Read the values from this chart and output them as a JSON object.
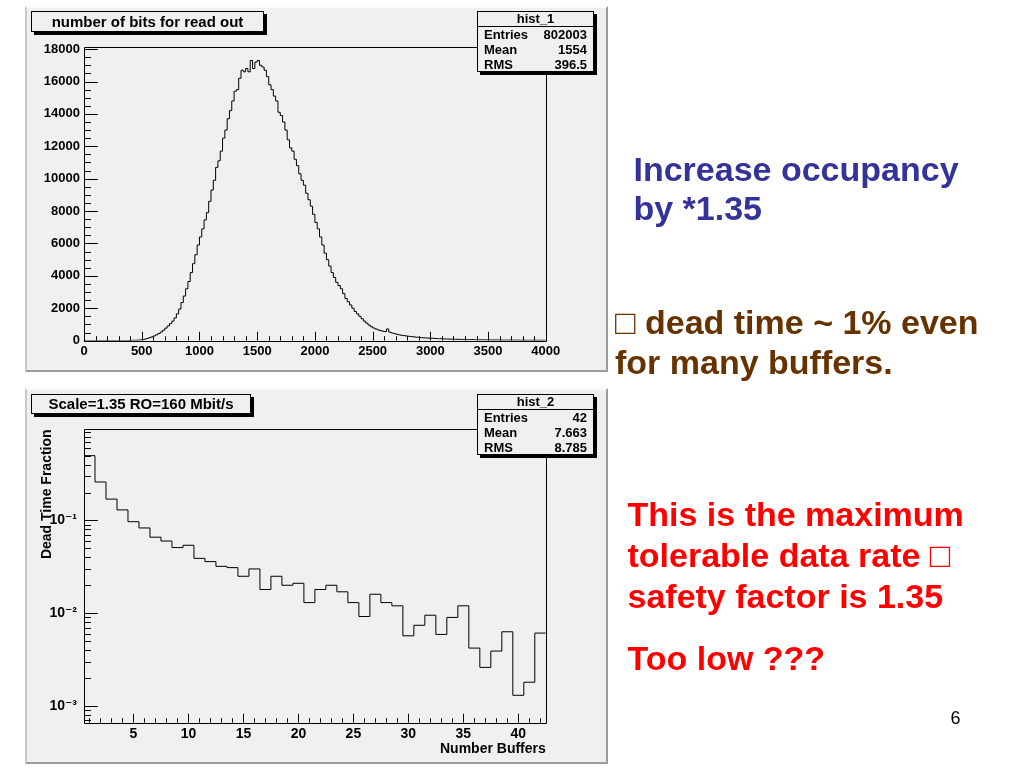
{
  "chart_data": [
    {
      "type": "histogram",
      "title": "number of bits for read out",
      "color": "#000000",
      "bins": [
        0,
        20,
        40,
        60,
        80,
        100,
        120,
        140,
        160,
        180,
        200,
        220,
        240,
        260,
        280,
        300,
        320,
        340,
        360,
        380,
        400,
        420,
        440,
        460,
        480,
        500,
        520,
        540,
        560,
        580,
        600,
        620,
        640,
        660,
        680,
        700,
        720,
        740,
        760,
        780,
        800,
        820,
        840,
        860,
        880,
        900,
        920,
        940,
        960,
        980,
        1000,
        1020,
        1040,
        1060,
        1080,
        1100,
        1120,
        1140,
        1160,
        1180,
        1200,
        1220,
        1240,
        1260,
        1280,
        1300,
        1320,
        1340,
        1360,
        1380,
        1400,
        1420,
        1440,
        1460,
        1480,
        1500,
        1520,
        1540,
        1560,
        1580,
        1600,
        1620,
        1640,
        1660,
        1680,
        1700,
        1720,
        1740,
        1760,
        1780,
        1800,
        1820,
        1840,
        1860,
        1880,
        1900,
        1920,
        1940,
        1960,
        1980,
        2000,
        2020,
        2040,
        2060,
        2080,
        2100,
        2120,
        2140,
        2160,
        2180,
        2200,
        2220,
        2240,
        2260,
        2280,
        2300,
        2320,
        2340,
        2360,
        2380,
        2400,
        2420,
        2440,
        2460,
        2480,
        2500,
        2520,
        2540,
        2560,
        2580,
        2600,
        2620,
        2640,
        2660,
        2680,
        2700,
        2720,
        2740,
        2760,
        2780,
        2800,
        2820,
        2840,
        2860,
        2880,
        2900,
        2920,
        2940,
        2960,
        2980,
        3000,
        3020,
        3040,
        3060,
        3080,
        3100,
        3120,
        3140,
        3160,
        3180,
        3200,
        3220,
        3240,
        3260,
        3280,
        3300,
        3320,
        3340,
        3360,
        3380,
        3400,
        3420,
        3440,
        3460,
        3480,
        3500,
        3520,
        3540,
        3560,
        3580,
        3600,
        3620,
        3640,
        3660,
        3680,
        3700,
        3720,
        3740,
        3760,
        3780,
        3800,
        3820,
        3840,
        3860,
        3880,
        3900,
        3920,
        3940,
        3960,
        3980,
        4000
      ],
      "values": [
        0,
        0,
        0,
        0,
        0,
        0,
        0,
        0,
        0,
        0,
        0,
        0,
        0,
        0,
        0,
        0,
        0,
        0,
        0,
        0,
        10,
        20,
        20,
        30,
        40,
        60,
        90,
        130,
        180,
        230,
        290,
        360,
        440,
        530,
        640,
        770,
        900,
        1050,
        1200,
        1400,
        1650,
        1950,
        2350,
        2750,
        3200,
        3650,
        4200,
        4750,
        5300,
        5900,
        6400,
        6900,
        7450,
        7900,
        8600,
        9300,
        9900,
        10700,
        11100,
        11700,
        12500,
        13000,
        13700,
        14200,
        14800,
        15400,
        15500,
        16200,
        16700,
        16600,
        16800,
        16600,
        17300,
        16800,
        17200,
        17300,
        17000,
        16900,
        16700,
        16300,
        15800,
        15500,
        15100,
        14800,
        14100,
        13900,
        13500,
        13000,
        12400,
        11900,
        11700,
        11200,
        10800,
        10300,
        9900,
        9600,
        9100,
        8700,
        8300,
        7800,
        7300,
        6900,
        6400,
        5900,
        5400,
        5000,
        4600,
        4200,
        3900,
        3600,
        3400,
        3200,
        2900,
        2600,
        2400,
        2200,
        2000,
        1800,
        1650,
        1500,
        1350,
        1200,
        1080,
        960,
        860,
        780,
        720,
        660,
        620,
        580,
        560,
        720,
        520,
        470,
        430,
        390,
        360,
        330,
        310,
        290,
        270,
        250,
        240,
        220,
        210,
        190,
        180,
        170,
        160,
        150,
        150,
        140,
        130,
        120,
        120,
        110,
        100,
        100,
        90,
        90,
        80,
        80,
        80,
        70,
        70,
        60,
        60,
        60,
        60,
        50,
        50,
        50,
        50,
        50,
        40,
        40,
        40,
        40,
        40,
        40,
        30,
        30,
        30,
        30,
        30,
        30,
        30,
        30,
        30,
        20,
        20,
        20,
        20,
        20,
        20,
        20,
        20,
        20,
        20,
        20
      ],
      "xlim": [
        0,
        4000
      ],
      "ylim": [
        0,
        18150
      ],
      "xticks": [
        0,
        {
          "value": 100,
          "label": null
        },
        {
          "value": 200,
          "label": null
        },
        {
          "value": 300,
          "label": null
        },
        {
          "value": 400,
          "label": null
        },
        500,
        {
          "value": 600,
          "label": null
        },
        {
          "value": 700,
          "label": null
        },
        {
          "value": 800,
          "label": null
        },
        {
          "value": 900,
          "label": null
        },
        1000,
        {
          "value": 1100,
          "label": null
        },
        {
          "value": 1200,
          "label": null
        },
        {
          "value": 1300,
          "label": null
        },
        {
          "value": 1400,
          "label": null
        },
        1500,
        {
          "value": 1600,
          "label": null
        },
        {
          "value": 1700,
          "label": null
        },
        {
          "value": 1800,
          "label": null
        },
        {
          "value": 1900,
          "label": null
        },
        2000,
        {
          "value": 2100,
          "label": null
        },
        {
          "value": 2200,
          "label": null
        },
        {
          "value": 2300,
          "label": null
        },
        {
          "value": 2400,
          "label": null
        },
        2500,
        {
          "value": 2600,
          "label": null
        },
        {
          "value": 2700,
          "label": null
        },
        {
          "value": 2800,
          "label": null
        },
        {
          "value": 2900,
          "label": null
        },
        3000,
        {
          "value": 3100,
          "label": null
        },
        {
          "value": 3200,
          "label": null
        },
        {
          "value": 3300,
          "label": null
        },
        {
          "value": 3400,
          "label": null
        },
        3500,
        {
          "value": 3600,
          "label": null
        },
        {
          "value": 3700,
          "label": null
        },
        {
          "value": 3800,
          "label": null
        },
        {
          "value": 3900,
          "label": null
        },
        4000
      ],
      "yticks": [
        0,
        {
          "value": 500,
          "label": null
        },
        {
          "value": 1000,
          "label": null
        },
        {
          "value": 1500,
          "label": null
        },
        2000,
        {
          "value": 2500,
          "label": null
        },
        {
          "value": 3000,
          "label": null
        },
        {
          "value": 3500,
          "label": null
        },
        4000,
        {
          "value": 4500,
          "label": null
        },
        {
          "value": 5000,
          "label": null
        },
        {
          "value": 5500,
          "label": null
        },
        6000,
        {
          "value": 6500,
          "label": null
        },
        {
          "value": 7000,
          "label": null
        },
        {
          "value": 7500,
          "label": null
        },
        8000,
        {
          "value": 8500,
          "label": null
        },
        {
          "value": 9000,
          "label": null
        },
        {
          "value": 9500,
          "label": null
        },
        10000,
        {
          "value": 10500,
          "label": null
        },
        {
          "value": 11000,
          "label": null
        },
        {
          "value": 11500,
          "label": null
        },
        12000,
        {
          "value": 12500,
          "label": null
        },
        {
          "value": 13000,
          "label": null
        },
        {
          "value": 13500,
          "label": null
        },
        14000,
        {
          "value": 14500,
          "label": null
        },
        {
          "value": 15000,
          "label": null
        },
        {
          "value": 15500,
          "label": null
        },
        16000,
        {
          "value": 16500,
          "label": null
        },
        {
          "value": 17000,
          "label": null
        },
        {
          "value": 17500,
          "label": null
        },
        18000
      ],
      "annotations": [
        "hist_1",
        "Entries",
        "802003",
        "Mean",
        "1554",
        "RMS",
        "396.5",
        "Increase occupancy by *1.35",
        "□ dead time ~ 1% even for many buffers."
      ]
    },
    {
      "type": "histogram",
      "title": "Scale=1.35 RO=160 Mbit/s",
      "xlabel": "Number Buffers",
      "ylabel": "Dead Time Fraction",
      "color": "#000000",
      "log": "y",
      "bins": [
        0.5,
        1.5,
        2.5,
        3.5,
        4.5,
        5.5,
        6.5,
        7.5,
        8.5,
        9.5,
        10.5,
        11.5,
        12.5,
        13.5,
        14.5,
        15.5,
        16.5,
        17.5,
        18.5,
        19.5,
        20.5,
        21.5,
        22.5,
        23.5,
        24.5,
        25.5,
        26.5,
        27.5,
        28.5,
        29.5,
        30.5,
        31.5,
        32.5,
        33.5,
        34.5,
        35.5,
        36.5,
        37.5,
        38.5,
        39.5,
        40.5,
        41.5,
        42.5
      ],
      "values": [
        0.5,
        0.26,
        0.17,
        0.13,
        0.097,
        0.083,
        0.066,
        0.06,
        0.051,
        0.054,
        0.039,
        0.036,
        0.032,
        0.031,
        0.025,
        0.03,
        0.018,
        0.025,
        0.02,
        0.021,
        0.013,
        0.018,
        0.02,
        0.017,
        0.013,
        0.0092,
        0.016,
        0.013,
        0.012,
        0.0057,
        0.0074,
        0.0095,
        0.0059,
        0.009,
        0.012,
        0.0042,
        0.0026,
        0.0039,
        0.0063,
        0.0013,
        0.0018,
        0.0061
      ],
      "xlim": [
        0.5,
        42.5
      ],
      "ylim": [
        0.00066,
        0.96
      ],
      "xticks": [
        {
          "value": 1,
          "label": null
        },
        {
          "value": 2,
          "label": null
        },
        {
          "value": 3,
          "label": null
        },
        {
          "value": 4,
          "label": null
        },
        5,
        {
          "value": 6,
          "label": null
        },
        {
          "value": 7,
          "label": null
        },
        {
          "value": 8,
          "label": null
        },
        {
          "value": 9,
          "label": null
        },
        10,
        {
          "value": 11,
          "label": null
        },
        {
          "value": 12,
          "label": null
        },
        {
          "value": 13,
          "label": null
        },
        {
          "value": 14,
          "label": null
        },
        15,
        {
          "value": 16,
          "label": null
        },
        {
          "value": 17,
          "label": null
        },
        {
          "value": 18,
          "label": null
        },
        {
          "value": 19,
          "label": null
        },
        20,
        {
          "value": 21,
          "label": null
        },
        {
          "value": 22,
          "label": null
        },
        {
          "value": 23,
          "label": null
        },
        {
          "value": 24,
          "label": null
        },
        25,
        {
          "value": 26,
          "label": null
        },
        {
          "value": 27,
          "label": null
        },
        {
          "value": 28,
          "label": null
        },
        {
          "value": 29,
          "label": null
        },
        30,
        {
          "value": 31,
          "label": null
        },
        {
          "value": 32,
          "label": null
        },
        {
          "value": 33,
          "label": null
        },
        {
          "value": 34,
          "label": null
        },
        35,
        {
          "value": 36,
          "label": null
        },
        {
          "value": 37,
          "label": null
        },
        {
          "value": 38,
          "label": null
        },
        {
          "value": 39,
          "label": null
        },
        40,
        {
          "value": 41,
          "label": null
        },
        {
          "value": 42,
          "label": null
        }
      ],
      "yticks": [
        {
          "value": 0.0007,
          "label": null
        },
        {
          "value": 0.0008,
          "label": null
        },
        {
          "value": 0.0009,
          "label": null
        },
        {
          "value": 0.001,
          "label": "10⁻³"
        },
        {
          "value": 0.002,
          "label": null
        },
        {
          "value": 0.003,
          "label": null
        },
        {
          "value": 0.004,
          "label": null
        },
        {
          "value": 0.005,
          "label": null
        },
        {
          "value": 0.006,
          "label": null
        },
        {
          "value": 0.007,
          "label": null
        },
        {
          "value": 0.008,
          "label": null
        },
        {
          "value": 0.009,
          "label": null
        },
        {
          "value": 0.01,
          "label": "10⁻²"
        },
        {
          "value": 0.02,
          "label": null
        },
        {
          "value": 0.03,
          "label": null
        },
        {
          "value": 0.04,
          "label": null
        },
        {
          "value": 0.05,
          "label": null
        },
        {
          "value": 0.06,
          "label": null
        },
        {
          "value": 0.07,
          "label": null
        },
        {
          "value": 0.08,
          "label": null
        },
        {
          "value": 0.09,
          "label": null
        },
        {
          "value": 0.1,
          "label": "10⁻¹"
        },
        {
          "value": 0.2,
          "label": null
        },
        {
          "value": 0.3,
          "label": null
        },
        {
          "value": 0.4,
          "label": null
        },
        {
          "value": 0.5,
          "label": null
        },
        {
          "value": 0.6,
          "label": null
        },
        {
          "value": 0.7,
          "label": null
        },
        {
          "value": 0.8,
          "label": null
        },
        {
          "value": 0.9,
          "label": null
        }
      ],
      "annotations": [
        "hist_2",
        "Entries",
        "42",
        "Mean",
        "7.663",
        "RMS",
        "8.785",
        "This is the maximum tolerable data rate □ safety factor is 1.35",
        "Too low ???",
        "6"
      ]
    }
  ]
}
